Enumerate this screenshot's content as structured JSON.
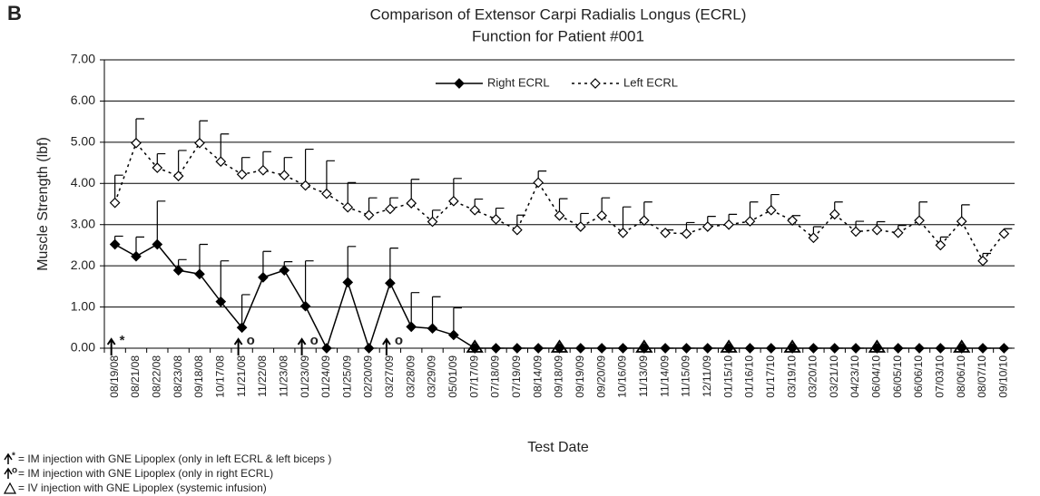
{
  "panel_label": "B",
  "chart_data": {
    "type": "line",
    "title": "Comparison of Extensor Carpi Radialis Longus (ECRL)",
    "subtitle": "Function for Patient #001",
    "y_label": "Muscle Strength (lbf)",
    "x_label": "Test Date",
    "categories": [
      "08/19/08",
      "08/21/08",
      "08/22/08",
      "08/23/08",
      "09/18/08",
      "10/17/08",
      "11/21/08",
      "11/22/08",
      "11/23/08",
      "01/23/09",
      "01/24/09",
      "01/25/09",
      "02/20/09",
      "03/27/09",
      "03/28/09",
      "03/29/09",
      "05/01/09",
      "07/17/09",
      "07/18/09",
      "07/19/09",
      "08/14/09",
      "09/18/09",
      "09/19/09",
      "09/20/09",
      "10/16/09",
      "11/13/09",
      "11/14/09",
      "11/15/09",
      "12/11/09",
      "01/15/10",
      "01/16/10",
      "01/17/10",
      "03/19/10",
      "03/20/10",
      "03/21/10",
      "04/23/10",
      "06/04/10",
      "06/05/10",
      "06/06/10",
      "07/03/10",
      "08/06/10",
      "08/07/10",
      "09/10/10"
    ],
    "series": [
      {
        "name": "Right ECRL",
        "color": "#000000",
        "dashed": false,
        "filled": true,
        "values": [
          2.52,
          2.23,
          2.52,
          1.89,
          1.8,
          1.13,
          0.5,
          1.72,
          1.89,
          1.02,
          0,
          1.6,
          0,
          1.58,
          0.52,
          0.48,
          0.32,
          0,
          0,
          0,
          0,
          0,
          0,
          0,
          0,
          0,
          0,
          0,
          0,
          0,
          0,
          0,
          0,
          0,
          0,
          0,
          0,
          0,
          0,
          0,
          0,
          0,
          0
        ],
        "errors": [
          0.2,
          0.47,
          1.05,
          0.26,
          0.72,
          0.99,
          0.8,
          0.63,
          0.21,
          1.1,
          0,
          0.87,
          0,
          0.85,
          0.83,
          0.77,
          0.66,
          0,
          0,
          0,
          0,
          0,
          0,
          0,
          0,
          0,
          0,
          0,
          0,
          0,
          0,
          0,
          0,
          0,
          0,
          0,
          0,
          0,
          0,
          0,
          0,
          0,
          0
        ]
      },
      {
        "name": "Left ECRL",
        "color": "#000000",
        "dashed": true,
        "filled": false,
        "values": [
          3.53,
          4.98,
          4.38,
          4.18,
          4.98,
          4.53,
          4.22,
          4.32,
          4.2,
          3.95,
          3.75,
          3.42,
          3.23,
          3.38,
          3.52,
          3.07,
          3.57,
          3.35,
          3.13,
          2.87,
          4.02,
          3.22,
          2.95,
          3.22,
          2.8,
          3.1,
          2.8,
          2.78,
          2.95,
          3.0,
          3.08,
          3.35,
          3.1,
          2.68,
          3.25,
          2.83,
          2.87,
          2.8,
          3.1,
          2.5,
          3.08,
          2.12,
          2.78
        ],
        "errors": [
          0.67,
          0.59,
          0.34,
          0.62,
          0.54,
          0.67,
          0.41,
          0.45,
          0.43,
          0.88,
          0.8,
          0.6,
          0.42,
          0.27,
          0.58,
          0.28,
          0.55,
          0.27,
          0.27,
          0.36,
          0.28,
          0.41,
          0.32,
          0.43,
          0.63,
          0.45,
          0.07,
          0.27,
          0.25,
          0.25,
          0.47,
          0.38,
          0.12,
          0.27,
          0.3,
          0.25,
          0.2,
          0.18,
          0.45,
          0.2,
          0.4,
          0.18,
          0.12
        ]
      }
    ],
    "ylim": [
      0,
      7
    ],
    "yticks": [
      {
        "value": 0,
        "label": "0.00"
      },
      {
        "value": 1,
        "label": "1.00"
      },
      {
        "value": 2,
        "label": "2.00"
      },
      {
        "value": 3,
        "label": "3.00"
      },
      {
        "value": 4,
        "label": "4.00"
      },
      {
        "value": 5,
        "label": "5.00"
      },
      {
        "value": 6,
        "label": "6.00"
      },
      {
        "value": 7,
        "label": "7.00"
      }
    ],
    "grid": true,
    "legend": "top",
    "im_injections": [
      {
        "category": "08/19/08",
        "symbol": "*"
      },
      {
        "category": "11/21/08",
        "symbol": "o"
      },
      {
        "category": "01/23/09",
        "symbol": "o"
      },
      {
        "category": "03/27/09",
        "symbol": "o"
      }
    ],
    "iv_injections": [
      "07/17/09",
      "09/18/09",
      "11/13/09",
      "01/15/10",
      "03/19/10",
      "06/04/10",
      "08/06/10"
    ],
    "footnotes": [
      {
        "symbol": "*",
        "text": "= IM injection with GNE Lipoplex  (only  in left ECRL & left biceps )"
      },
      {
        "symbol": "o",
        "text": "= IM injection with GNE Lipoplex  (only in right ECRL)"
      },
      {
        "symbol": null,
        "text": "= IV injection with GNE Lipoplex (systemic infusion)"
      }
    ]
  }
}
